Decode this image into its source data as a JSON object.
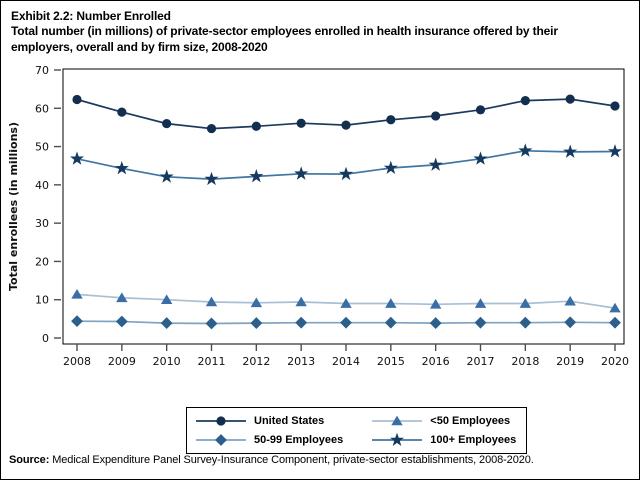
{
  "page": {
    "title": "Exhibit 2.2: Number Enrolled",
    "subtitle": "Total number (in millions) of private-sector employees enrolled in health insurance offered by their employers, overall and by firm size, 2008-2020"
  },
  "source": {
    "label": "Source:",
    "text": " Medical Expenditure Panel Survey-Insurance Component, private-sector establishments, 2008-2020."
  },
  "chart_data": {
    "type": "line",
    "title": "Exhibit 2.2: Number Enrolled",
    "subtitle": "Total number (in millions) of private-sector employees enrolled in health insurance offered by their employers, overall and by firm size, 2008-2020",
    "xlabel": "",
    "ylabel": "Total enrollees (in millions)",
    "x": [
      2008,
      2009,
      2010,
      2011,
      2012,
      2013,
      2014,
      2015,
      2016,
      2017,
      2018,
      2019,
      2020
    ],
    "ylim": [
      0,
      70
    ],
    "yticks": [
      0,
      10,
      20,
      30,
      40,
      50,
      60,
      70
    ],
    "grid": false,
    "legend_position": "bottom-box",
    "series": [
      {
        "name": "United States",
        "marker": "circle",
        "marker_color": "#132f50",
        "line_color": "#1c3a5e",
        "values": [
          62.3,
          59.0,
          56.0,
          54.7,
          55.3,
          56.1,
          55.6,
          57.0,
          58.0,
          59.6,
          62.0,
          62.4,
          60.6
        ]
      },
      {
        "name": "50-99 Employees",
        "marker": "diamond",
        "marker_color": "#2d5f8c",
        "line_color": "#7fa3c2",
        "values": [
          4.4,
          4.3,
          3.9,
          3.8,
          3.9,
          4.0,
          4.0,
          4.0,
          3.9,
          4.0,
          4.0,
          4.1,
          4.0
        ]
      },
      {
        "name": "<50 Employees",
        "marker": "triangle",
        "marker_color": "#3a6ea5",
        "line_color": "#a9bfd4",
        "values": [
          11.4,
          10.5,
          10.0,
          9.4,
          9.2,
          9.4,
          9.0,
          9.0,
          8.8,
          9.0,
          9.0,
          9.6,
          7.8
        ]
      },
      {
        "name": "100+ Employees",
        "marker": "star",
        "marker_color": "#16395f",
        "line_color": "#4175a3",
        "values": [
          46.8,
          44.3,
          42.1,
          41.5,
          42.2,
          42.9,
          42.8,
          44.4,
          45.2,
          46.8,
          48.9,
          48.6,
          48.7
        ]
      }
    ]
  }
}
